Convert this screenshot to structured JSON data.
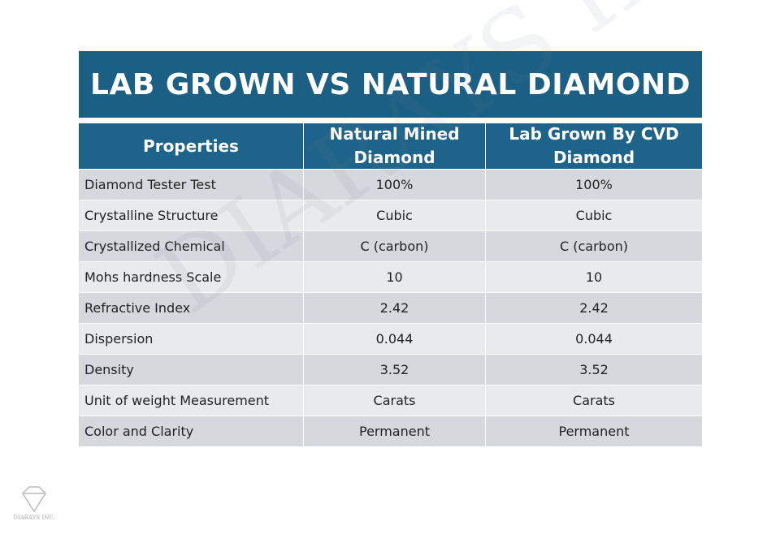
{
  "header": {
    "title": "LAB GROWN VS NATURAL DIAMOND"
  },
  "table": {
    "columns": [
      "Properties",
      "Natural Mined Diamond",
      "Lab Grown By CVD Diamond"
    ],
    "rows": [
      [
        "Diamond Tester Test",
        "100%",
        "100%"
      ],
      [
        "Crystalline Structure",
        "Cubic",
        "Cubic"
      ],
      [
        "Crystallized Chemical",
        "C (carbon)",
        "C (carbon)"
      ],
      [
        "Mohs hardness Scale",
        "10",
        "10"
      ],
      [
        "Refractive Index",
        "2.42",
        "2.42"
      ],
      [
        "Dispersion",
        "0.044",
        "0.044"
      ],
      [
        "Density",
        "3.52",
        "3.52"
      ],
      [
        "Unit of weight Measurement",
        "Carats",
        "Carats"
      ],
      [
        "Color and Clarity",
        "Permanent",
        "Permanent"
      ]
    ]
  },
  "watermark": "DIARAYS INC",
  "logo": "DIARAYS INC."
}
